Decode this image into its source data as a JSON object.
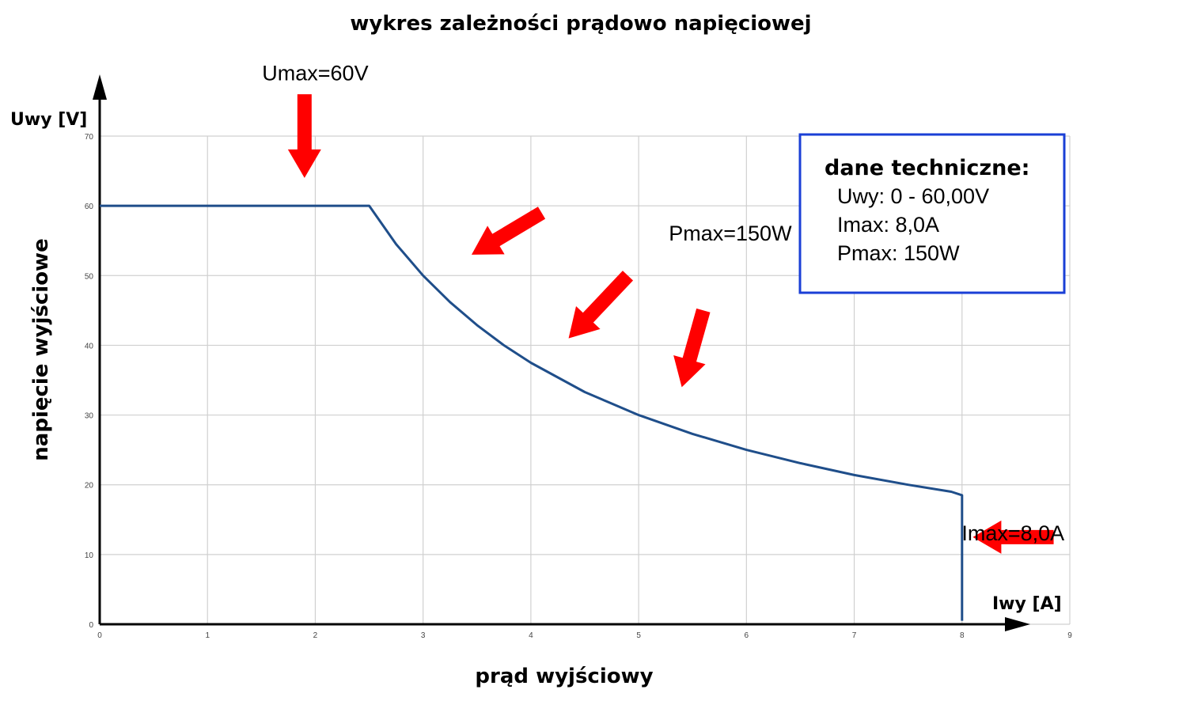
{
  "chart_data": {
    "type": "line",
    "title": "wykres zależności prądowo napięciowej",
    "xlabel": "prąd wyjściowy",
    "ylabel": "napięcie wyjściowe",
    "x_unit_label": "Iwy [A]",
    "y_unit_label": "Uwy [V]",
    "xlim": [
      0,
      9
    ],
    "ylim": [
      0,
      70
    ],
    "xticks": [
      0,
      1,
      2,
      3,
      4,
      5,
      6,
      7,
      8,
      9
    ],
    "yticks": [
      0,
      10,
      20,
      30,
      40,
      50,
      60,
      70
    ],
    "grid": true,
    "series": [
      {
        "color": "#1f4e8a",
        "points": [
          [
            0,
            60
          ],
          [
            2.5,
            60
          ],
          [
            2.75,
            54.5
          ],
          [
            3,
            50
          ],
          [
            3.25,
            46.2
          ],
          [
            3.5,
            42.9
          ],
          [
            3.75,
            40
          ],
          [
            4,
            37.5
          ],
          [
            4.5,
            33.3
          ],
          [
            5,
            30
          ],
          [
            5.5,
            27.3
          ],
          [
            6,
            25
          ],
          [
            6.5,
            23.1
          ],
          [
            7,
            21.4
          ],
          [
            7.5,
            20
          ],
          [
            7.9,
            19
          ],
          [
            8,
            18.5
          ],
          [
            8,
            0.5
          ]
        ]
      }
    ],
    "annotations": [
      {
        "text": "Umax=60V",
        "x": 2.0,
        "y": 78
      },
      {
        "text": "Pmax=150W",
        "x": 5.85,
        "y": 55
      },
      {
        "text": "Imax=8,0A",
        "x": 8.95,
        "y": 12
      }
    ],
    "arrow_color": "#ff0000",
    "arrows": [
      {
        "from": [
          1.9,
          76
        ],
        "to": [
          1.9,
          64
        ]
      },
      {
        "from": [
          4.1,
          59
        ],
        "to": [
          3.45,
          53
        ]
      },
      {
        "from": [
          4.9,
          50
        ],
        "to": [
          4.35,
          41
        ]
      },
      {
        "from": [
          5.6,
          45
        ],
        "to": [
          5.4,
          34
        ]
      },
      {
        "from": [
          8.85,
          12.5
        ],
        "to": [
          8.1,
          12.5
        ]
      }
    ],
    "info_box": {
      "title": "dane techniczne:",
      "lines": [
        "Uwy: 0 - 60,00V",
        "Imax: 8,0A",
        "Pmax: 150W"
      ],
      "border_color": "#1a3fd6"
    }
  }
}
